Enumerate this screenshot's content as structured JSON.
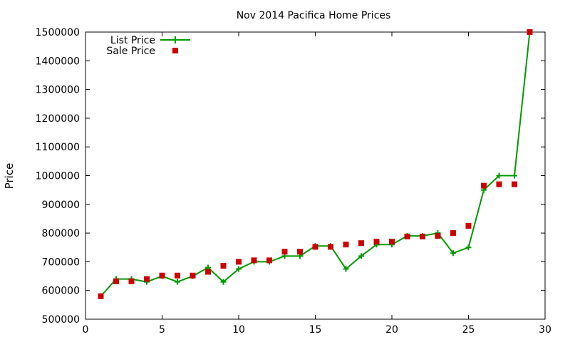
{
  "chart_data": {
    "type": "line",
    "title": "Nov 2014 Pacifica Home Prices",
    "xlabel": "",
    "ylabel": "Price",
    "xlim": [
      0,
      30
    ],
    "ylim": [
      500000,
      1500000
    ],
    "xticks": [
      0,
      5,
      10,
      15,
      20,
      25,
      30
    ],
    "yticks": [
      500000,
      600000,
      700000,
      800000,
      900000,
      1000000,
      1100000,
      1200000,
      1300000,
      1400000,
      1500000
    ],
    "grid": false,
    "legend_position": "top-left",
    "series": [
      {
        "name": "List Price",
        "style": "line+cross",
        "color": "#009900",
        "x": [
          1,
          2,
          3,
          4,
          5,
          6,
          7,
          8,
          9,
          10,
          11,
          12,
          13,
          14,
          15,
          16,
          17,
          18,
          19,
          20,
          21,
          22,
          23,
          24,
          25,
          26,
          27,
          28,
          29
        ],
        "y": [
          580000,
          640000,
          640000,
          630000,
          650000,
          630000,
          650000,
          680000,
          630000,
          675000,
          700000,
          700000,
          720000,
          720000,
          755000,
          755000,
          675000,
          720000,
          760000,
          760000,
          790000,
          790000,
          800000,
          730000,
          750000,
          950000,
          1000000,
          1000000,
          1500000
        ]
      },
      {
        "name": "Sale Price",
        "style": "square",
        "color": "#cc0000",
        "x": [
          1,
          2,
          3,
          4,
          5,
          6,
          7,
          8,
          9,
          10,
          11,
          12,
          13,
          14,
          15,
          16,
          17,
          18,
          19,
          20,
          21,
          22,
          23,
          24,
          25,
          26,
          27,
          28,
          29
        ],
        "y": [
          580000,
          632000,
          632000,
          640000,
          652000,
          652000,
          652000,
          665000,
          686000,
          700000,
          705000,
          705000,
          735000,
          735000,
          752000,
          752000,
          760000,
          765000,
          770000,
          770000,
          788000,
          788000,
          790000,
          800000,
          825000,
          965000,
          970000,
          970000,
          1500000
        ]
      }
    ]
  }
}
